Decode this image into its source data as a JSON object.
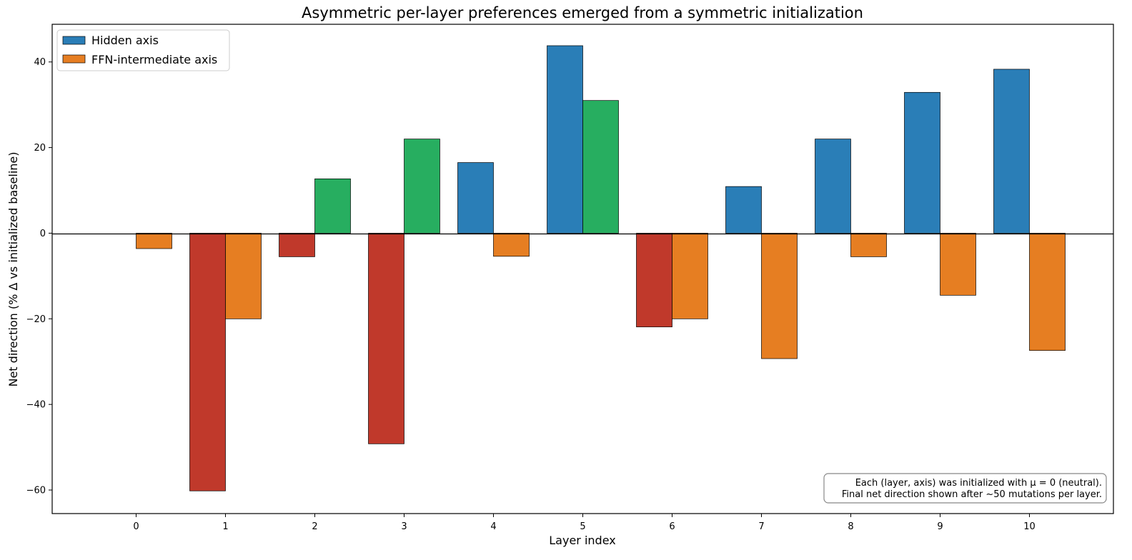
{
  "chart_data": {
    "type": "bar",
    "title": "Asymmetric per-layer preferences emerged from a symmetric initialization",
    "xlabel": "Layer index",
    "ylabel": "Net direction (% Δ vs initialized baseline)",
    "categories": [
      "0",
      "1",
      "2",
      "3",
      "4",
      "5",
      "6",
      "7",
      "8",
      "9",
      "10"
    ],
    "ylim": [
      -65.5,
      48.8
    ],
    "yticks": [
      -60,
      -40,
      -20,
      0,
      20,
      40
    ],
    "ytick_labels": [
      "−60",
      "−40",
      "−20",
      "0",
      "20",
      "40"
    ],
    "series": [
      {
        "name": "Hidden axis",
        "values": [
          0,
          -60.2,
          -5.5,
          -49.2,
          16.5,
          43.8,
          -21.9,
          10.9,
          22.0,
          32.9,
          38.3
        ]
      },
      {
        "name": "FFN-intermediate axis",
        "values": [
          -3.6,
          -20.0,
          12.7,
          22.0,
          -5.4,
          31.0,
          -20.0,
          -29.3,
          -5.5,
          -14.5,
          -27.4
        ]
      }
    ],
    "bar_colors": {
      "hidden_positive": "#2a7eb7",
      "ffn_negative": "#e67e22",
      "ffn_positive": "#27ae60",
      "hidden_negative": "#c0392b"
    },
    "legend": {
      "placement": "top-left",
      "entries": [
        {
          "label": "Hidden axis",
          "color": "#2a7eb7"
        },
        {
          "label": "FFN-intermediate axis",
          "color": "#e67e22"
        }
      ]
    },
    "annotation": {
      "placement": "bottom-right",
      "lines": [
        "Each (layer, axis) was initialized with μ = 0 (neutral).",
        "Final net direction shown after ~50 mutations per layer."
      ]
    },
    "grid": false
  }
}
